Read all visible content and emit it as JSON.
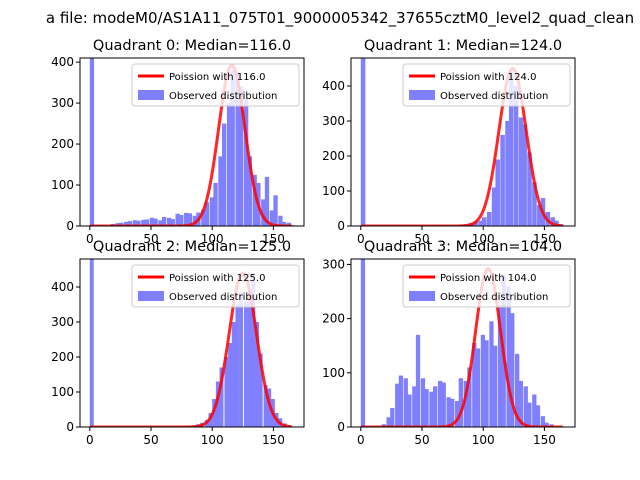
{
  "figure": {
    "suptitle": "a file: modeM0/AS1A11_075T01_9000005342_37655cztM0_level2_quad_clean"
  },
  "colors": {
    "histogram": "#8080ff",
    "poisson_line": "#ff0000",
    "axes": "#000000"
  },
  "chart_data": [
    {
      "type": "bar",
      "title": "Quadrant 0: Median=116.0",
      "xlim": [
        -8,
        175
      ],
      "ylim": [
        0,
        410
      ],
      "xticks": [
        0,
        50,
        100,
        150
      ],
      "yticks": [
        0,
        100,
        200,
        300,
        400
      ],
      "legend": [
        "Poission with 116.0",
        "Observed distribution"
      ],
      "legend_position": "top-right",
      "line_peak": {
        "x": 116,
        "y": 392
      },
      "bin_width": 3.5,
      "bins": [
        [
          0,
          410
        ],
        [
          17,
          5
        ],
        [
          21,
          7
        ],
        [
          24,
          8
        ],
        [
          28,
          10
        ],
        [
          31,
          12
        ],
        [
          35,
          14
        ],
        [
          38,
          13
        ],
        [
          42,
          15
        ],
        [
          45,
          16
        ],
        [
          49,
          20
        ],
        [
          52,
          18
        ],
        [
          56,
          14
        ],
        [
          59,
          22
        ],
        [
          63,
          20
        ],
        [
          66,
          17
        ],
        [
          70,
          30
        ],
        [
          73,
          27
        ],
        [
          77,
          32
        ],
        [
          80,
          31
        ],
        [
          84,
          25
        ],
        [
          87,
          33
        ],
        [
          91,
          40
        ],
        [
          94,
          58
        ],
        [
          98,
          70
        ],
        [
          101,
          105
        ],
        [
          105,
          170
        ],
        [
          108,
          250
        ],
        [
          112,
          300
        ],
        [
          115,
          380
        ],
        [
          119,
          375
        ],
        [
          122,
          340
        ],
        [
          126,
          310
        ],
        [
          129,
          170
        ],
        [
          133,
          125
        ],
        [
          136,
          105
        ],
        [
          140,
          65
        ],
        [
          143,
          120
        ],
        [
          147,
          38
        ],
        [
          150,
          75
        ],
        [
          154,
          25
        ],
        [
          157,
          10
        ],
        [
          161,
          8
        ],
        [
          164,
          2
        ]
      ]
    },
    {
      "type": "bar",
      "title": "Quadrant 1: Median=124.0",
      "xlim": [
        -8,
        175
      ],
      "ylim": [
        0,
        480
      ],
      "xticks": [
        0,
        50,
        100,
        150
      ],
      "yticks": [
        0,
        100,
        200,
        300,
        400
      ],
      "legend": [
        "Poission with 124.0",
        "Observed distribution"
      ],
      "legend_position": "top-right",
      "line_peak": {
        "x": 124,
        "y": 450
      },
      "bin_width": 3.7,
      "bins": [
        [
          0,
          480
        ],
        [
          80,
          3
        ],
        [
          84,
          5
        ],
        [
          88,
          8
        ],
        [
          92,
          12
        ],
        [
          96,
          15
        ],
        [
          99,
          25
        ],
        [
          103,
          40
        ],
        [
          107,
          110
        ],
        [
          110,
          190
        ],
        [
          114,
          260
        ],
        [
          118,
          300
        ],
        [
          121,
          440
        ],
        [
          125,
          400
        ],
        [
          129,
          310
        ],
        [
          132,
          290
        ],
        [
          136,
          210
        ],
        [
          140,
          125
        ],
        [
          144,
          60
        ],
        [
          147,
          80
        ],
        [
          151,
          40
        ],
        [
          155,
          25
        ],
        [
          158,
          15
        ],
        [
          162,
          5
        ]
      ]
    },
    {
      "type": "bar",
      "title": "Quadrant 2: Median=125.0",
      "xlim": [
        -8,
        175
      ],
      "ylim": [
        0,
        480
      ],
      "xticks": [
        0,
        50,
        100,
        150
      ],
      "yticks": [
        0,
        100,
        200,
        300,
        400
      ],
      "legend": [
        "Poission with 125.0",
        "Observed distribution"
      ],
      "legend_position": "top-right",
      "line_peak": {
        "x": 125,
        "y": 440
      },
      "bin_width": 3.2,
      "bins": [
        [
          0,
          480
        ],
        [
          78,
          3
        ],
        [
          81,
          2
        ],
        [
          84,
          5
        ],
        [
          87,
          8
        ],
        [
          90,
          12
        ],
        [
          94,
          20
        ],
        [
          97,
          40
        ],
        [
          100,
          80
        ],
        [
          103,
          130
        ],
        [
          106,
          170
        ],
        [
          110,
          200
        ],
        [
          113,
          240
        ],
        [
          116,
          300
        ],
        [
          119,
          350
        ],
        [
          122,
          385
        ],
        [
          126,
          360
        ],
        [
          129,
          390
        ],
        [
          132,
          440
        ],
        [
          135,
          300
        ],
        [
          138,
          210
        ],
        [
          142,
          120
        ],
        [
          145,
          110
        ],
        [
          148,
          80
        ],
        [
          151,
          40
        ],
        [
          154,
          25
        ],
        [
          158,
          10
        ],
        [
          161,
          5
        ]
      ]
    },
    {
      "type": "bar",
      "title": "Quadrant 3: Median=104.0",
      "xlim": [
        -8,
        175
      ],
      "ylim": [
        0,
        310
      ],
      "xticks": [
        0,
        50,
        100,
        150
      ],
      "yticks": [
        0,
        100,
        200,
        300
      ],
      "legend": [
        "Poission with 104.0",
        "Observed distribution"
      ],
      "legend_position": "top-right",
      "line_peak": {
        "x": 104,
        "y": 292
      },
      "bin_width": 3.5,
      "bins": [
        [
          0,
          310
        ],
        [
          17,
          5
        ],
        [
          21,
          18
        ],
        [
          24,
          35
        ],
        [
          28,
          80
        ],
        [
          31,
          95
        ],
        [
          35,
          90
        ],
        [
          38,
          60
        ],
        [
          42,
          75
        ],
        [
          45,
          170
        ],
        [
          49,
          90
        ],
        [
          52,
          70
        ],
        [
          56,
          65
        ],
        [
          59,
          75
        ],
        [
          63,
          85
        ],
        [
          66,
          82
        ],
        [
          70,
          55
        ],
        [
          73,
          52
        ],
        [
          77,
          48
        ],
        [
          80,
          90
        ],
        [
          84,
          85
        ],
        [
          87,
          110
        ],
        [
          91,
          155
        ],
        [
          94,
          145
        ],
        [
          98,
          170
        ],
        [
          101,
          160
        ],
        [
          105,
          195
        ],
        [
          108,
          150
        ],
        [
          112,
          225
        ],
        [
          115,
          280
        ],
        [
          119,
          260
        ],
        [
          122,
          210
        ],
        [
          126,
          135
        ],
        [
          129,
          85
        ],
        [
          133,
          75
        ],
        [
          136,
          45
        ],
        [
          140,
          60
        ],
        [
          143,
          40
        ],
        [
          147,
          20
        ],
        [
          150,
          8
        ],
        [
          154,
          5
        ]
      ]
    }
  ]
}
